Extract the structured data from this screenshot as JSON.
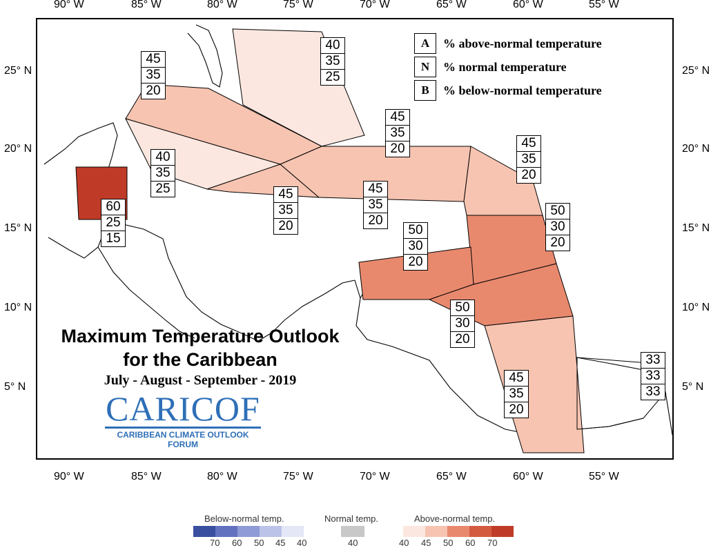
{
  "map": {
    "title_line1": "Maximum Temperature Outlook",
    "title_line2": "for the Caribbean",
    "period": "July - August - September - 2019",
    "logo_text": "CARICOF",
    "logo_subtitle": "CARIBBEAN CLIMATE OUTLOOK FORUM",
    "longitude_labels": [
      "90° W",
      "85° W",
      "80° W",
      "75° W",
      "70° W",
      "65° W",
      "60° W",
      "55° W"
    ],
    "latitude_labels": [
      "25° N",
      "20° N",
      "15° N",
      "10° N",
      "5° N"
    ]
  },
  "key": [
    {
      "letter": "A",
      "text": "% above-normal temperature"
    },
    {
      "letter": "N",
      "text": "% normal temperature"
    },
    {
      "letter": "B",
      "text": "% below-normal temperature"
    }
  ],
  "regions": [
    {
      "name": "bahamas",
      "values": [
        "40",
        "35",
        "25"
      ],
      "category": "above",
      "level": 40
    },
    {
      "name": "cuba-northwest",
      "values": [
        "45",
        "35",
        "20"
      ],
      "category": "above",
      "level": 45
    },
    {
      "name": "western-caribbean",
      "values": [
        "40",
        "35",
        "25"
      ],
      "category": "above",
      "level": 40
    },
    {
      "name": "belize",
      "values": [
        "60",
        "25",
        "15"
      ],
      "category": "above",
      "level": 60
    },
    {
      "name": "jamaica",
      "values": [
        "45",
        "35",
        "20"
      ],
      "category": "above",
      "level": 45
    },
    {
      "name": "hispaniola",
      "values": [
        "45",
        "35",
        "20"
      ],
      "category": "above",
      "level": 45
    },
    {
      "name": "greater-antilles-north",
      "values": [
        "45",
        "35",
        "20"
      ],
      "category": "above",
      "level": 45
    },
    {
      "name": "leeward-islands",
      "values": [
        "45",
        "35",
        "20"
      ],
      "category": "above",
      "level": 45
    },
    {
      "name": "windward-islands",
      "values": [
        "50",
        "30",
        "20"
      ],
      "category": "above",
      "level": 50
    },
    {
      "name": "abc-islands",
      "values": [
        "50",
        "30",
        "20"
      ],
      "category": "above",
      "level": 50
    },
    {
      "name": "trinidad",
      "values": [
        "50",
        "30",
        "20"
      ],
      "category": "above",
      "level": 50
    },
    {
      "name": "guyana",
      "values": [
        "45",
        "35",
        "20"
      ],
      "category": "above",
      "level": 45
    },
    {
      "name": "french-guiana",
      "values": [
        "33",
        "33",
        "33"
      ],
      "category": "climatology",
      "level": 33
    }
  ],
  "legend": {
    "below_title": "Below-normal temp.",
    "normal_title": "Normal temp.",
    "above_title": "Above-normal temp.",
    "below_ticks": [
      "70",
      "60",
      "50",
      "45",
      "40"
    ],
    "normal_ticks": [
      "40"
    ],
    "above_ticks": [
      "40",
      "45",
      "50",
      "60",
      "70"
    ],
    "below_colors": [
      "#3a4fa0",
      "#6272bf",
      "#8f9bd6",
      "#bcc3e8",
      "#e4e7f6"
    ],
    "normal_color": "#c8c8c8",
    "above_colors": [
      "#fbe7df",
      "#f6c4b1",
      "#e8896e",
      "#d45a3f",
      "#c03b27"
    ]
  }
}
